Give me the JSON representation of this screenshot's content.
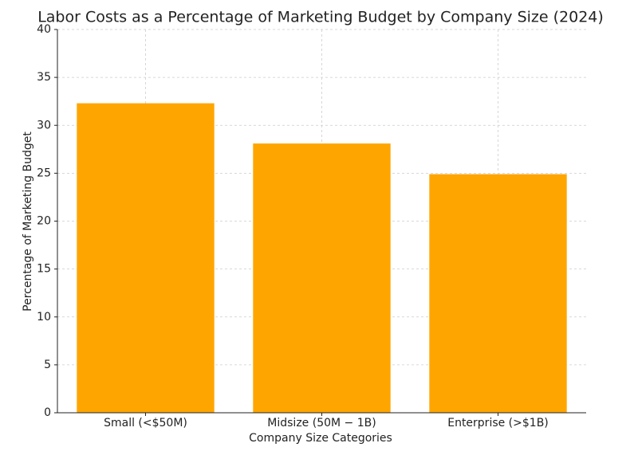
{
  "chart_data": {
    "type": "bar",
    "title": "Labor Costs as a Percentage of Marketing Budget by Company Size (2024)",
    "x_label": "Company Size Categories",
    "y_label": "Percentage of Marketing Budget",
    "categories": [
      "Small (<$50M)",
      "Midsize (50M − 1B)",
      "Enterprise (>$1B)"
    ],
    "values": [
      32.3,
      28.1,
      24.9
    ],
    "color": "#ffa500",
    "ylim": [
      0,
      40
    ],
    "yticks": [
      0,
      5,
      10,
      15,
      20,
      25,
      30,
      35,
      40
    ],
    "grid": true
  }
}
